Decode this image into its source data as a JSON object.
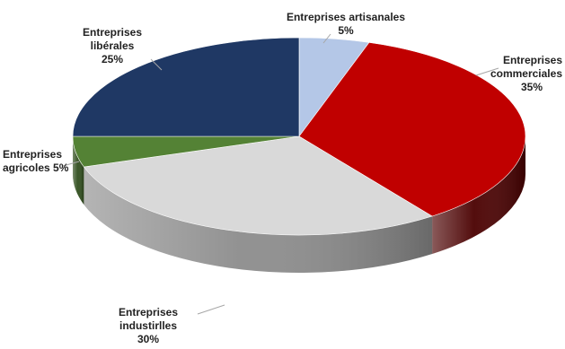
{
  "chart_data": {
    "type": "pie",
    "title": "",
    "slices": [
      {
        "category": "Entreprises artisanales",
        "value": 5,
        "label_line1": "Entreprises artisanales",
        "label_line2": "",
        "pct": "5%",
        "color": "#b4c7e7",
        "side_dark": "#7f93b8"
      },
      {
        "category": "Entreprises commerciales",
        "value": 35,
        "label_line1": "Entreprises",
        "label_line2": "commerciales",
        "pct": "35%",
        "color": "#c00000",
        "side_dark": "#4a0000"
      },
      {
        "category": "Entreprises industirlles",
        "value": 30,
        "label_line1": "Entreprises",
        "label_line2": "industirlles",
        "pct": "30%",
        "color": "#d9d9d9",
        "side_dark": "#8c8c8c"
      },
      {
        "category": "Entreprises agricoles",
        "value": 5,
        "label_line1": "Entreprises",
        "label_line2": "agricoles",
        "pct": "5%",
        "color": "#548235",
        "side_dark": "#2f4d1c"
      },
      {
        "category": "Entreprises libérales",
        "value": 25,
        "label_line1": "Entreprises",
        "label_line2": "libérales",
        "pct": "25%",
        "color": "#1f3864",
        "side_dark": "#0f1c33"
      }
    ]
  }
}
